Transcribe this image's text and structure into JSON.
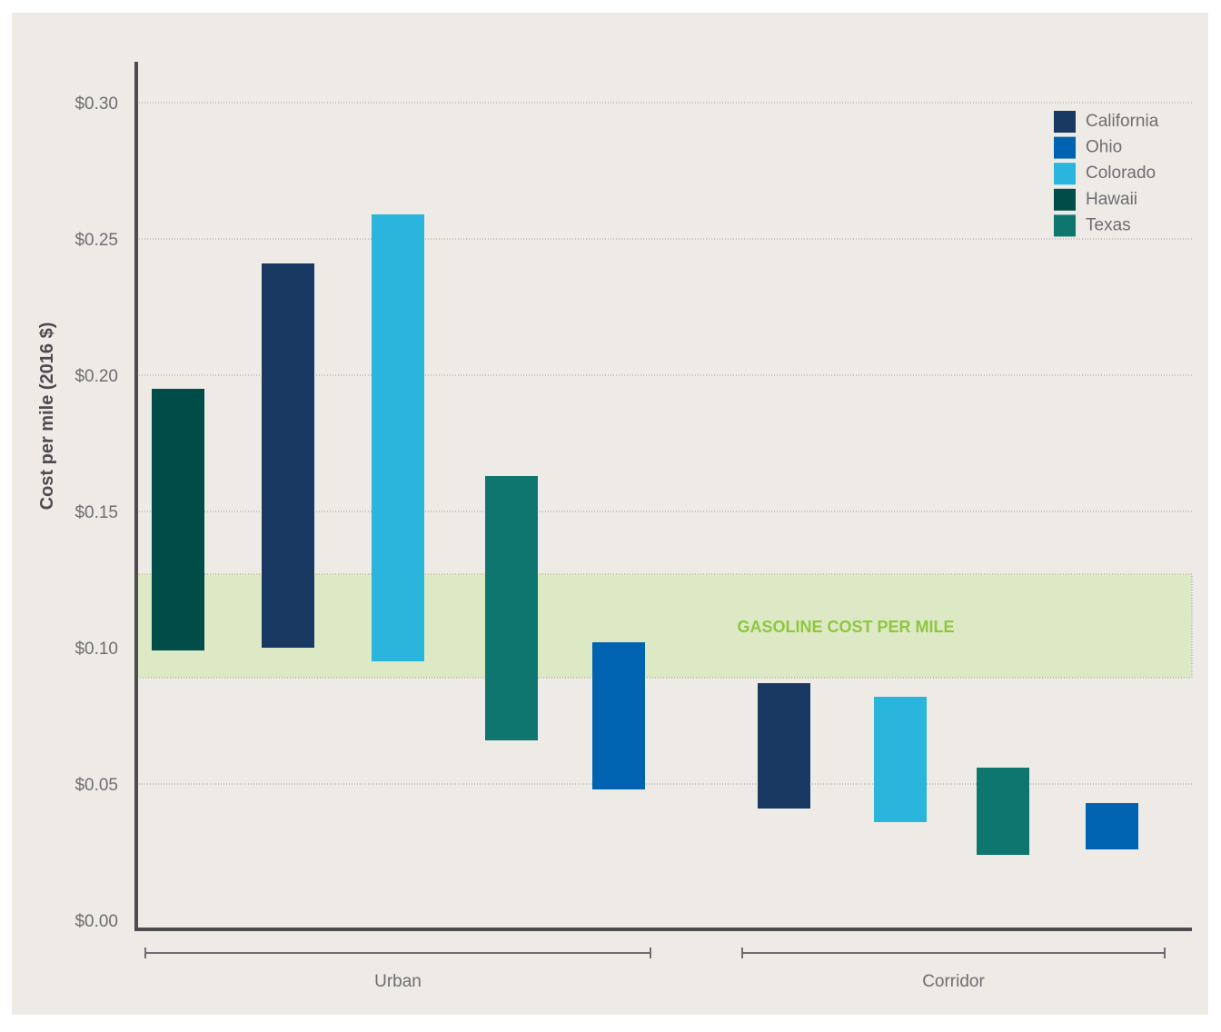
{
  "chart_data": {
    "type": "floating-bar",
    "ylabel": "Cost per mile (2016 $)",
    "ylim": [
      0,
      0.3
    ],
    "yticks": [
      {
        "value": 0.3,
        "label": "$0.30"
      },
      {
        "value": 0.25,
        "label": "$0.25"
      },
      {
        "value": 0.2,
        "label": "$0.20"
      },
      {
        "value": 0.15,
        "label": "$0.15"
      },
      {
        "value": 0.1,
        "label": "$0.10"
      },
      {
        "value": 0.05,
        "label": "$0.05"
      },
      {
        "value": 0.0,
        "label": "$0.00"
      }
    ],
    "grid": true,
    "legend_position": "top-right",
    "legend": [
      {
        "name": "California",
        "color": "#193963"
      },
      {
        "name": "Ohio",
        "color": "#0063b1"
      },
      {
        "name": "Colorado",
        "color": "#29b5dc"
      },
      {
        "name": "Hawaii",
        "color": "#004c48"
      },
      {
        "name": "Texas",
        "color": "#0e766e"
      }
    ],
    "gasoline_band": {
      "label": "GASOLINE COST PER MILE",
      "low": 0.089,
      "high": 0.127,
      "color": "#8dc63f"
    },
    "groups": [
      {
        "name": "Urban",
        "bars": [
          {
            "state": "Hawaii",
            "low": 0.099,
            "high": 0.195
          },
          {
            "state": "California",
            "low": 0.1,
            "high": 0.241
          },
          {
            "state": "Colorado",
            "low": 0.095,
            "high": 0.259
          },
          {
            "state": "Texas",
            "low": 0.066,
            "high": 0.163
          },
          {
            "state": "Ohio",
            "low": 0.048,
            "high": 0.102
          }
        ]
      },
      {
        "name": "Corridor",
        "bars": [
          {
            "state": "California",
            "low": 0.041,
            "high": 0.087
          },
          {
            "state": "Colorado",
            "low": 0.036,
            "high": 0.082
          },
          {
            "state": "Texas",
            "low": 0.024,
            "high": 0.056
          },
          {
            "state": "Ohio",
            "low": 0.026,
            "high": 0.043
          }
        ]
      }
    ]
  }
}
